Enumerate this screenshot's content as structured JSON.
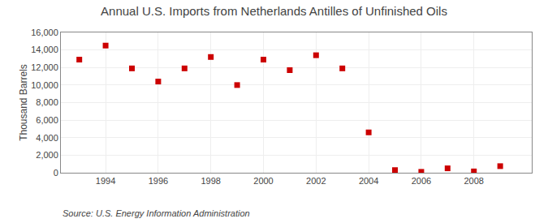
{
  "chart_data": {
    "type": "scatter",
    "title": "Annual U.S. Imports from Netherlands Antilles of Unfinished Oils",
    "ylabel": "Thousand Barrels",
    "annotations": [
      "Source: U.S. Energy Information Administration"
    ],
    "x": [
      1993,
      1994,
      1995,
      1996,
      1997,
      1998,
      1999,
      2000,
      2001,
      2002,
      2003,
      2004,
      2005,
      2006,
      2007,
      2008,
      2009
    ],
    "values": [
      12900,
      14500,
      11900,
      10400,
      11900,
      13200,
      10000,
      12900,
      11700,
      13400,
      11900,
      4600,
      300,
      100,
      500,
      150,
      750
    ],
    "color": "#cc0000",
    "marker": "square",
    "xlim": [
      1992.3,
      2010.2
    ],
    "xticks": [
      1994,
      1996,
      1998,
      2000,
      2002,
      2004,
      2006,
      2008
    ],
    "ylim": [
      0,
      16000
    ],
    "yticks": [
      0,
      {
        "value": 2000,
        "label": "2,000"
      },
      {
        "value": 4000,
        "label": "4,000"
      },
      {
        "value": 6000,
        "label": "6,000"
      },
      {
        "value": 8000,
        "label": "8,000"
      },
      {
        "value": 10000,
        "label": "10,000"
      },
      {
        "value": 12000,
        "label": "12,000"
      },
      {
        "value": 14000,
        "label": "14,000"
      },
      {
        "value": 16000,
        "label": "16,000"
      }
    ],
    "grid": true
  }
}
